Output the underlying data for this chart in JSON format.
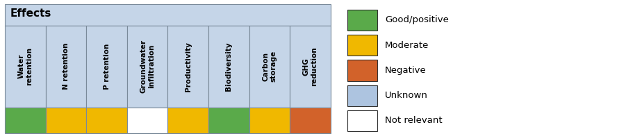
{
  "title": "Effects",
  "columns": [
    "Water\nretention",
    "N retention",
    "P retention",
    "Groundwater\ninfiltration",
    "Productivity",
    "Biodiversity",
    "Carbon\nstorage",
    "GHG\nreduction"
  ],
  "cell_colors": [
    "#5aaa4a",
    "#f0b800",
    "#f0b800",
    "#ffffff",
    "#f0b800",
    "#5aaa4a",
    "#f0b800",
    "#d2622a"
  ],
  "header_bg": "#c5d5e8",
  "legend_items": [
    {
      "label": "Good/positive",
      "color": "#5aaa4a"
    },
    {
      "label": "Moderate",
      "color": "#f0b800"
    },
    {
      "label": "Negative",
      "color": "#d2622a"
    },
    {
      "label": "Unknown",
      "color": "#adc4e0"
    },
    {
      "label": "Not relevant",
      "color": "#ffffff"
    }
  ],
  "title_fontsize": 11,
  "col_fontsize": 7.5,
  "legend_fontsize": 9.5
}
